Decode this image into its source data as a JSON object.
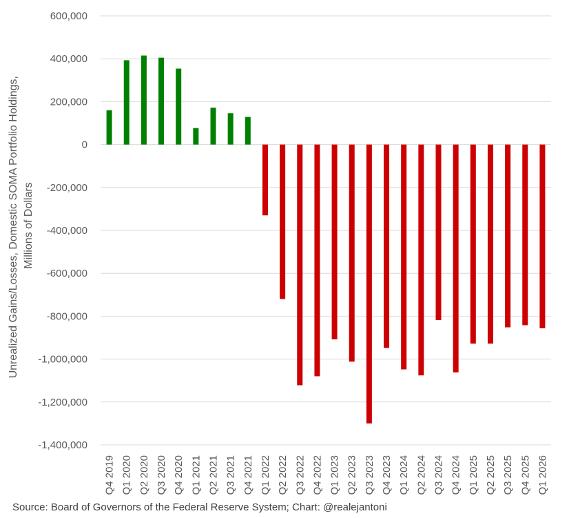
{
  "chart_data": {
    "type": "bar",
    "title": "",
    "ylabel_lines": [
      "Unrealized Gains/Losses, Domestic SOMA Portfolio Holdings,",
      "Millions of Dollars"
    ],
    "xlabel": "",
    "ylim": [
      -1400000,
      600000
    ],
    "y_ticks": [
      600000,
      400000,
      200000,
      0,
      -200000,
      -400000,
      -600000,
      -800000,
      -1000000,
      -1200000,
      -1400000
    ],
    "y_tick_labels": [
      "600,000",
      "400,000",
      "200,000",
      "0",
      "-200,000",
      "-400,000",
      "-600,000",
      "-800,000",
      "-1,000,000",
      "-1,200,000",
      "-1,400,000"
    ],
    "grid": true,
    "categories": [
      "Q4 2019",
      "Q1 2020",
      "Q2 2020",
      "Q3 2020",
      "Q4 2020",
      "Q1 2021",
      "Q2 2021",
      "Q3 2021",
      "Q4 2021",
      "Q1 2022",
      "Q2 2022",
      "Q3 2022",
      "Q4 2022",
      "Q1 2023",
      "Q2 2023",
      "Q3 2023",
      "Q4 2023",
      "Q1 2024",
      "Q2 2024",
      "Q3 2024",
      "Q4 2024",
      "Q1 2025",
      "Q2 2025",
      "Q3 2025",
      "Q4 2025",
      "Q1 2026"
    ],
    "values": [
      160000,
      393000,
      415000,
      405000,
      354000,
      77000,
      172000,
      146000,
      129000,
      -330000,
      -720000,
      -1122000,
      -1080000,
      -908000,
      -1012000,
      -1300000,
      -948000,
      -1048000,
      -1076000,
      -818000,
      -1062000,
      -928000,
      -928000,
      -852000,
      -842000,
      -856000
    ],
    "colors": {
      "positive": "#008000",
      "negative": "#cc0000",
      "grid": "#d9d9d9",
      "text": "#595959"
    }
  },
  "source": "Source: Board of Governors of the Federal Reserve System; Chart: @realejantoni"
}
